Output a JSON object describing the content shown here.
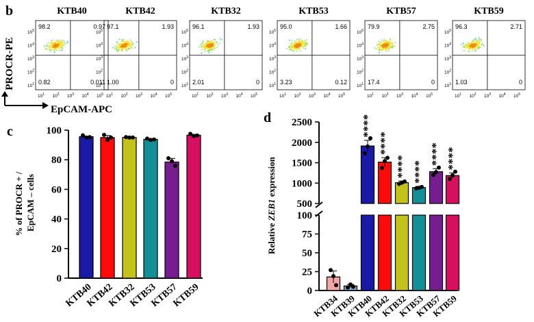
{
  "panel_b": {
    "label": "b",
    "y_axis_label": "PROCR-PE",
    "x_axis_label": "EpCAM-APC",
    "tick_exponents": [
      "1",
      "2",
      "3",
      "4",
      "5"
    ],
    "plots": [
      {
        "sample": "KTB40",
        "q_ul": "98.2",
        "q_ur": "0.97",
        "q_ll": "0.82",
        "q_lr": "0.011"
      },
      {
        "sample": "KTB42",
        "q_ul": "97.1",
        "q_ur": "1.93",
        "q_ll": "1.00",
        "q_lr": "0"
      },
      {
        "sample": "KTB32",
        "q_ul": "96.1",
        "q_ur": "1.93",
        "q_ll": "2.01",
        "q_lr": "0"
      },
      {
        "sample": "KTB53",
        "q_ul": "95.0",
        "q_ur": "1.66",
        "q_ll": "3.23",
        "q_lr": "0.12"
      },
      {
        "sample": "KTB57",
        "q_ul": "79.9",
        "q_ur": "2.75",
        "q_ll": "17.4",
        "q_lr": "0"
      },
      {
        "sample": "KTB59",
        "q_ul": "96.3",
        "q_ur": "2.71",
        "q_ll": "1.03",
        "q_lr": "0"
      }
    ]
  },
  "panel_c": {
    "label": "c",
    "ylabel_line1": "% of PROCR + /",
    "ylabel_line2": "EpCAM – cells"
  },
  "panel_d": {
    "label": "d",
    "ylabel_prefix": "Relative ",
    "ylabel_gene": "ZEB1",
    "ylabel_suffix": " expression",
    "significance": "****"
  },
  "colors": {
    "KTB34": "#f4a6a6",
    "KTB39": "#7fa2c8",
    "KTB40": "#1a1aa6",
    "KTB42": "#ff0a0a",
    "KTB32": "#c2c21a",
    "KTB53": "#138f98",
    "KTB57": "#761d8f",
    "KTB59": "#d6105f"
  },
  "chart_data": [
    {
      "type": "bar",
      "panel": "c",
      "categories": [
        "KTB40",
        "KTB42",
        "KTB32",
        "KTB53",
        "KTB57",
        "KTB59"
      ],
      "values": [
        95.6,
        95.0,
        95.1,
        93.8,
        78.5,
        96.6
      ],
      "errors": [
        0.4,
        1.4,
        0.3,
        0.5,
        2.4,
        0.6
      ],
      "points": [
        [
          96.5,
          95.0,
          95.3
        ],
        [
          96.8,
          93.4,
          95.0
        ],
        [
          95.3,
          95.0,
          95.1
        ],
        [
          94.3,
          93.4,
          93.7
        ],
        [
          81.0,
          79.0,
          76.0
        ],
        [
          97.5,
          96.0,
          96.4
        ]
      ],
      "ylim": [
        0,
        100
      ],
      "yticks": [
        0,
        20,
        40,
        60,
        80,
        100
      ],
      "ylabel": "% of PROCR + / EpCAM – cells"
    },
    {
      "type": "bar",
      "panel": "d",
      "categories": [
        "KTB34",
        "KTB39",
        "KTB40",
        "KTB42",
        "KTB32",
        "KTB53",
        "KTB57",
        "KTB59"
      ],
      "values": [
        18,
        6,
        1910,
        1515,
        1010,
        890,
        1280,
        1185
      ],
      "errors": [
        8,
        2,
        140,
        110,
        40,
        30,
        75,
        65
      ],
      "points": [
        [
          27,
          19,
          7
        ],
        [
          4,
          8,
          5
        ],
        [
          1730,
          1900,
          2100
        ],
        [
          1370,
          1540,
          1620
        ],
        [
          980,
          1010,
          1040
        ],
        [
          870,
          885,
          905
        ],
        [
          1200,
          1270,
          1380
        ],
        [
          1100,
          1190,
          1280
        ]
      ],
      "significant": [
        false,
        false,
        true,
        true,
        true,
        true,
        true,
        true
      ],
      "ylim_lower": [
        0,
        100
      ],
      "ylim_upper": [
        500,
        2500
      ],
      "yticks_lower": [
        0,
        25,
        50,
        75,
        100
      ],
      "yticks_upper": [
        500,
        1000,
        1500,
        2000,
        2500
      ],
      "ylabel": "Relative ZEB1 expression"
    }
  ]
}
